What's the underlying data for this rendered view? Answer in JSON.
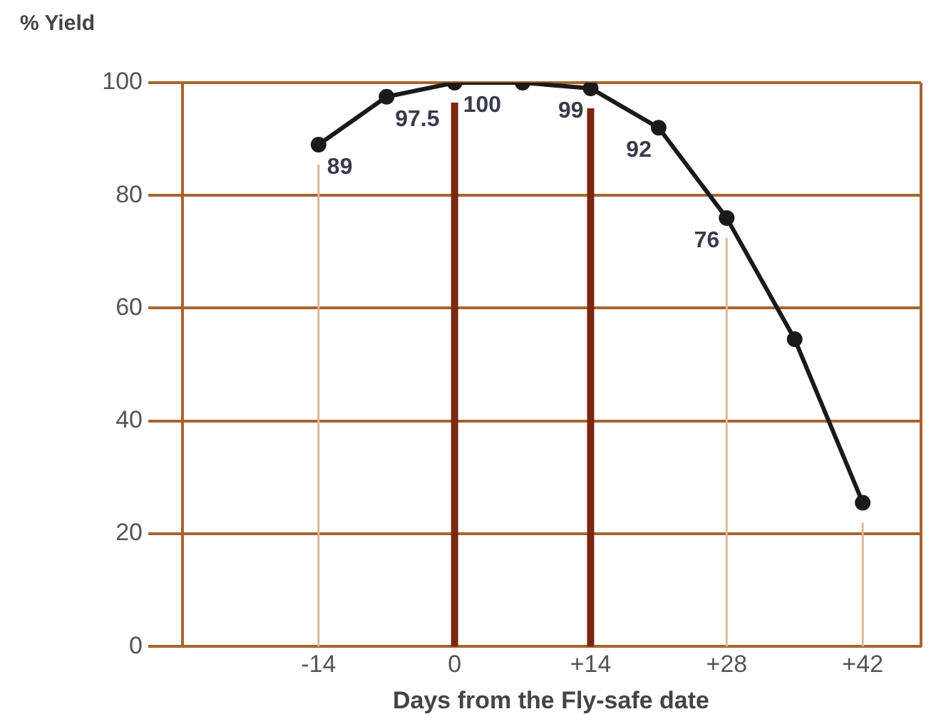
{
  "chart_data": {
    "type": "line",
    "ylabel": "% Yield",
    "xlabel": "Days from the Fly-safe date",
    "x": [
      -14,
      -7,
      0,
      7,
      14,
      21,
      28,
      35,
      42
    ],
    "series": [
      {
        "color": "#1a1a1a",
        "values": [
          89,
          97.5,
          100,
          100,
          99,
          92,
          76,
          54.5,
          25.5
        ],
        "value_labels": [
          "89",
          "97.5",
          "100",
          null,
          "99",
          "92",
          "76",
          null,
          null
        ]
      }
    ],
    "xlim": [
      -28,
      48
    ],
    "xticks": [
      -14,
      0,
      {
        "value": 14,
        "label": "+14"
      },
      {
        "value": 28,
        "label": "+28"
      },
      {
        "value": 42,
        "label": "+42"
      }
    ],
    "ylim": [
      0,
      100
    ],
    "yticks": [
      0,
      20,
      40,
      60,
      80,
      100
    ],
    "grid": "y",
    "marker": "circle",
    "line_style": "solid",
    "legend": false,
    "ref_lines": [
      {
        "axis": "x",
        "value": -14,
        "color": "#dcb896"
      },
      {
        "axis": "x",
        "value": 0,
        "color": "#7a2810"
      },
      {
        "axis": "x",
        "value": 14,
        "color": "#7a2810"
      },
      {
        "axis": "x",
        "value": 28,
        "color": "#dcb896"
      },
      {
        "axis": "x",
        "value": 42,
        "color": "#dcb896"
      }
    ]
  }
}
